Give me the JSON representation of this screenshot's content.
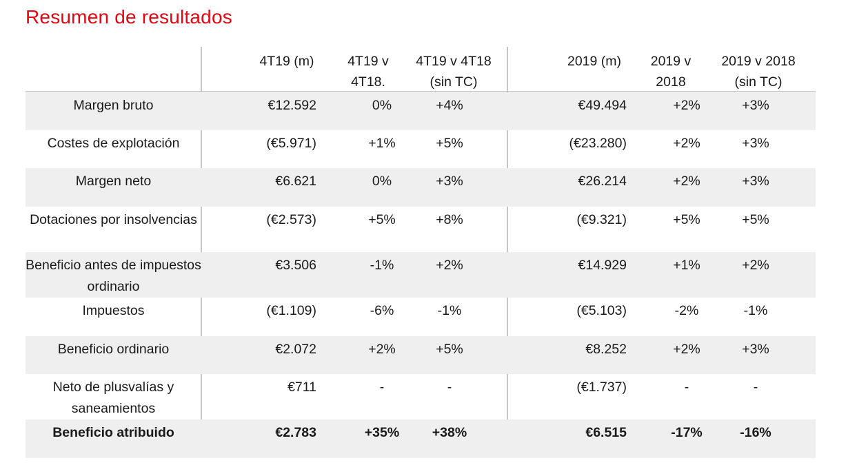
{
  "title": "Resumen de resultados",
  "columns": [
    "4T19 (m)",
    "4T19 v\n4T18.",
    "4T19 v 4T18\n(sin TC)",
    "2019 (m)",
    "2019 v\n2018",
    "2019 v 2018\n(sin TC)"
  ],
  "rows": [
    {
      "label": "Margen bruto",
      "values": [
        "€12.592",
        "0%",
        "+4%",
        "€49.494",
        "+2%",
        "+3%"
      ]
    },
    {
      "label": "Costes de explotación",
      "values": [
        "(€5.971)",
        "+1%",
        "+5%",
        "(€23.280)",
        "+2%",
        "+3%"
      ]
    },
    {
      "label": "Margen neto",
      "values": [
        "€6.621",
        "0%",
        "+3%",
        "€26.214",
        "+2%",
        "+3%"
      ]
    },
    {
      "label": "Dotaciones por insolvencias",
      "values": [
        "(€2.573)",
        "+5%",
        "+8%",
        "(€9.321)",
        "+5%",
        "+5%"
      ]
    },
    {
      "label": "Beneficio antes de impuestos ordinario",
      "values": [
        "€3.506",
        "-1%",
        "+2%",
        "€14.929",
        "+1%",
        "+2%"
      ]
    },
    {
      "label": "Impuestos",
      "values": [
        "(€1.109)",
        "-6%",
        "-1%",
        "(€5.103)",
        "-2%",
        "-1%"
      ]
    },
    {
      "label": "Beneficio ordinario",
      "values": [
        "€2.072",
        "+2%",
        "+5%",
        "€8.252",
        "+2%",
        "+3%"
      ]
    },
    {
      "label": "Neto de plusvalías y saneamientos",
      "values": [
        "€711",
        "-",
        "-",
        "(€1.737)",
        "-",
        "-"
      ]
    },
    {
      "label": "Beneficio atribuido",
      "values": [
        "€2.783",
        "+35%",
        "+38%",
        "€6.515",
        "-17%",
        "-16%"
      ]
    }
  ]
}
